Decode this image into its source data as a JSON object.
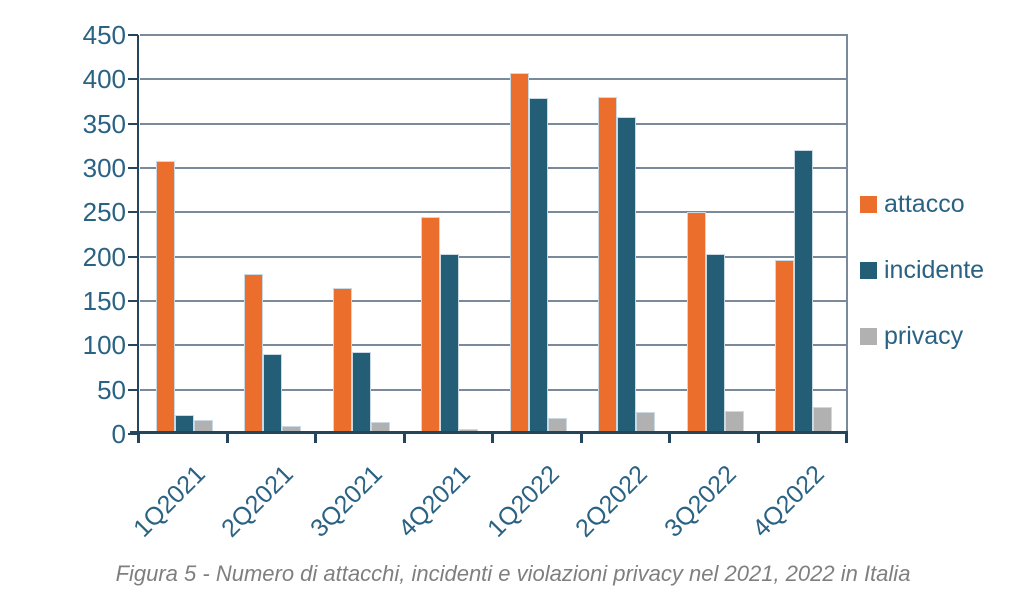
{
  "chart_data": {
    "type": "bar",
    "title": "",
    "caption": "Figura 5 - Numero di attacchi, incidenti e violazioni privacy nel 2021, 2022 in Italia",
    "categories": [
      "1Q2021",
      "2Q2021",
      "3Q2021",
      "4Q2021",
      "1Q2022",
      "2Q2022",
      "3Q2022",
      "4Q2022"
    ],
    "series": [
      {
        "name": "attacco",
        "color": "#EB6E2D",
        "values": [
          308,
          181,
          165,
          245,
          407,
          380,
          250,
          196
        ]
      },
      {
        "name": "incidente",
        "color": "#235D76",
        "values": [
          21,
          90,
          93,
          203,
          379,
          358,
          203,
          320
        ]
      },
      {
        "name": "privacy",
        "color": "#B1B1B1",
        "values": [
          16,
          9,
          13,
          6,
          18,
          25,
          26,
          30
        ]
      }
    ],
    "xlabel": "",
    "ylabel": "",
    "ylim": [
      0,
      450
    ],
    "yticks": [
      0,
      50,
      100,
      150,
      200,
      250,
      300,
      350,
      400,
      450
    ],
    "grid": true,
    "legend_position": "right"
  },
  "colors": {
    "axis_text": "#2A6283",
    "grid_line": "#7B8A9A",
    "axis_line": "#24455C",
    "bar_outline": "#C9DAE4",
    "caption_text": "#7F7F7F",
    "background": "#FFFFFF"
  }
}
